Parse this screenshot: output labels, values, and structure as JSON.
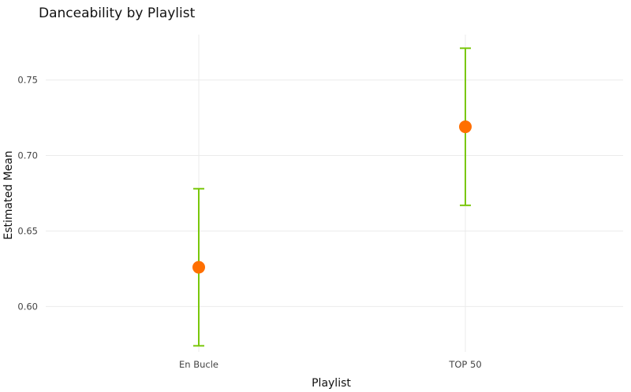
{
  "chart_data": {
    "type": "scatter",
    "title": "Danceability by Playlist",
    "xlabel": "Playlist",
    "ylabel": "Estimated Mean",
    "categories": [
      "En Bucle",
      "TOP 50"
    ],
    "series": [
      {
        "estimates": [
          0.626,
          0.719
        ],
        "lower": [
          0.574,
          0.667
        ],
        "upper": [
          0.678,
          0.771
        ]
      }
    ],
    "ylim": [
      0.57,
      0.78
    ],
    "yticks": [
      0.6,
      0.65,
      0.7,
      0.75
    ],
    "ytick_labels": [
      "0.60",
      "0.65",
      "0.70",
      "0.75"
    ],
    "grid": true,
    "legend": "none",
    "colors": {
      "point": "#ff6f00",
      "errorbar": "#7ac70c",
      "grid": "#ebebeb"
    }
  }
}
